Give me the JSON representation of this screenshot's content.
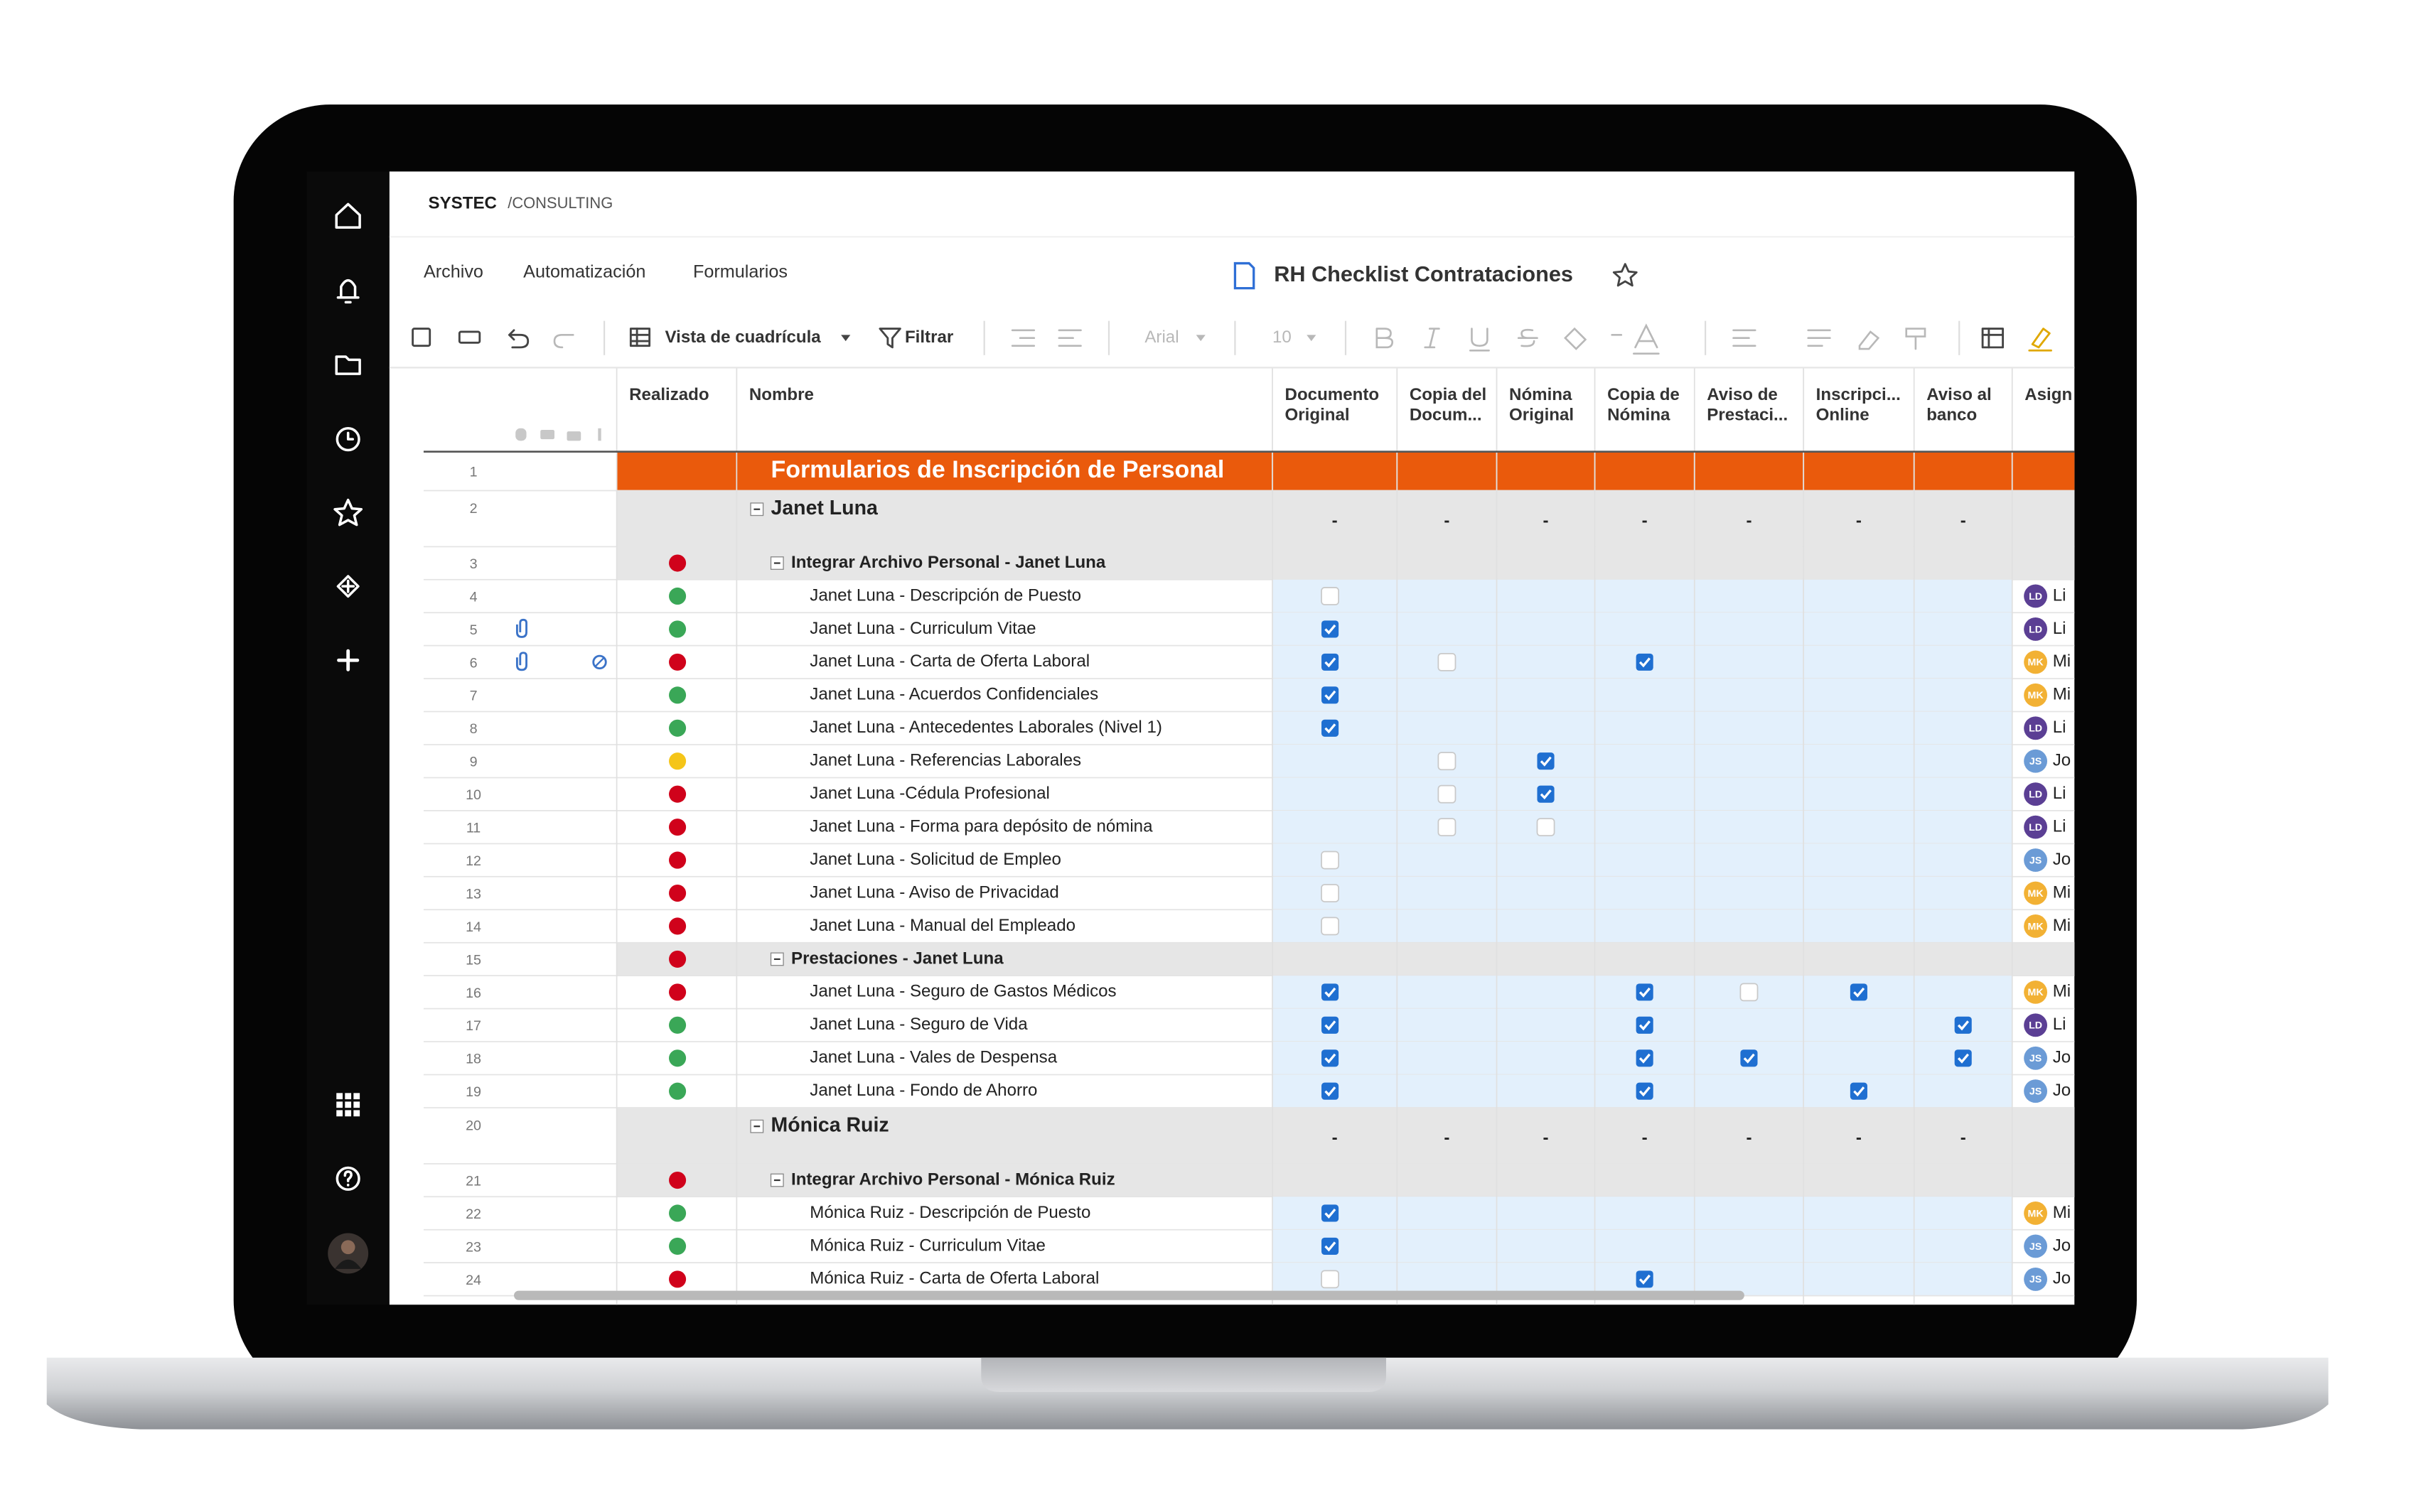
{
  "logo": {
    "brand": "SYSTEC",
    "suffix": "/CONSULTING"
  },
  "menu": [
    "Archivo",
    "Automatización",
    "Formularios"
  ],
  "sheet_title": "RH Checklist Contrataciones",
  "toolbar": {
    "view": "Vista de cuadrícula",
    "filter": "Filtrar",
    "font": "Arial",
    "size": 10
  },
  "columns": [
    {
      "lines": [
        "Realizado"
      ]
    },
    {
      "lines": [
        "Nombre"
      ]
    },
    {
      "lines": [
        "Documento",
        "Original"
      ]
    },
    {
      "lines": [
        "Copia del",
        "Docum..."
      ]
    },
    {
      "lines": [
        "Nómina",
        "Original"
      ]
    },
    {
      "lines": [
        "Copia de",
        "Nómina"
      ]
    },
    {
      "lines": [
        "Aviso de",
        "Prestaci..."
      ]
    },
    {
      "lines": [
        "Inscripci...",
        "Online"
      ]
    },
    {
      "lines": [
        "Aviso al",
        "banco"
      ]
    },
    {
      "lines": [
        "Asign"
      ]
    }
  ],
  "status_colors": {
    "red": "#d0021b",
    "green": "#3aa757",
    "yellow": "#f5c518"
  },
  "assignee_colors": {
    "LD": "#5b3f94",
    "MK": "#f2b134",
    "JS": "#6b9bd6"
  },
  "rows": [
    {
      "n": 1,
      "name": "Formularios de Inscripción de Personal"
    },
    {
      "n": 2,
      "level": 0,
      "name": "Janet Luna",
      "cells": [
        "-",
        "-",
        "-",
        "-",
        "-",
        "-",
        "-"
      ]
    },
    {
      "n": 3,
      "level": 1,
      "status": "red",
      "name": "Integrar Archivo Personal - Janet Luna"
    },
    {
      "n": 4,
      "level": 2,
      "status": "green",
      "name": "Janet Luna - Descripción de Puesto",
      "checks": [
        false,
        null,
        null,
        null,
        null,
        null,
        null
      ],
      "assignee": {
        "initials": "LD",
        "name": "Li"
      }
    },
    {
      "n": 5,
      "level": 2,
      "status": "green",
      "name": "Janet Luna - Curriculum Vitae",
      "attach": true,
      "checks": [
        true,
        null,
        null,
        null,
        null,
        null,
        null
      ],
      "assignee": {
        "initials": "LD",
        "name": "Li"
      }
    },
    {
      "n": 6,
      "level": 2,
      "status": "red",
      "name": "Janet Luna - Carta de Oferta Laboral",
      "attach": true,
      "linked": true,
      "checks": [
        true,
        false,
        null,
        true,
        null,
        null,
        null
      ],
      "assignee": {
        "initials": "MK",
        "name": "Mi"
      }
    },
    {
      "n": 7,
      "level": 2,
      "status": "green",
      "name": "Janet Luna - Acuerdos Confidenciales",
      "checks": [
        true,
        null,
        null,
        null,
        null,
        null,
        null
      ],
      "assignee": {
        "initials": "MK",
        "name": "Mi"
      }
    },
    {
      "n": 8,
      "level": 2,
      "status": "green",
      "name": "Janet Luna - Antecedentes Laborales (Nivel 1)",
      "checks": [
        true,
        null,
        null,
        null,
        null,
        null,
        null
      ],
      "assignee": {
        "initials": "LD",
        "name": "Li"
      }
    },
    {
      "n": 9,
      "level": 2,
      "status": "yellow",
      "name": "Janet Luna - Referencias Laborales",
      "checks": [
        null,
        false,
        true,
        null,
        null,
        null,
        null
      ],
      "assignee": {
        "initials": "JS",
        "name": "Jo"
      }
    },
    {
      "n": 10,
      "level": 2,
      "status": "red",
      "name": "Janet Luna -Cédula Profesional",
      "checks": [
        null,
        false,
        true,
        null,
        null,
        null,
        null
      ],
      "assignee": {
        "initials": "LD",
        "name": "Li"
      }
    },
    {
      "n": 11,
      "level": 2,
      "status": "red",
      "name": "Janet Luna - Forma para depósito de nómina",
      "checks": [
        null,
        false,
        false,
        null,
        null,
        null,
        null
      ],
      "assignee": {
        "initials": "LD",
        "name": "Li"
      }
    },
    {
      "n": 12,
      "level": 2,
      "status": "red",
      "name": "Janet Luna - Solicitud de Empleo",
      "checks": [
        false,
        null,
        null,
        null,
        null,
        null,
        null
      ],
      "assignee": {
        "initials": "JS",
        "name": "Jo"
      }
    },
    {
      "n": 13,
      "level": 2,
      "status": "red",
      "name": "Janet Luna - Aviso de Privacidad",
      "checks": [
        false,
        null,
        null,
        null,
        null,
        null,
        null
      ],
      "assignee": {
        "initials": "MK",
        "name": "Mi"
      }
    },
    {
      "n": 14,
      "level": 2,
      "status": "red",
      "name": "Janet Luna - Manual del Empleado",
      "checks": [
        false,
        null,
        null,
        null,
        null,
        null,
        null
      ],
      "assignee": {
        "initials": "MK",
        "name": "Mi"
      }
    },
    {
      "n": 15,
      "level": 1,
      "status": "red",
      "name": "Prestaciones - Janet Luna"
    },
    {
      "n": 16,
      "level": 2,
      "status": "red",
      "name": "Janet Luna - Seguro de Gastos Médicos",
      "checks": [
        true,
        null,
        null,
        true,
        false,
        true,
        null
      ],
      "assignee": {
        "initials": "MK",
        "name": "Mi"
      }
    },
    {
      "n": 17,
      "level": 2,
      "status": "green",
      "name": "Janet Luna - Seguro de Vida",
      "checks": [
        true,
        null,
        null,
        true,
        null,
        null,
        true
      ],
      "assignee": {
        "initials": "LD",
        "name": "Li"
      }
    },
    {
      "n": 18,
      "level": 2,
      "status": "green",
      "name": "Janet Luna - Vales de Despensa",
      "checks": [
        true,
        null,
        null,
        true,
        true,
        null,
        true
      ],
      "assignee": {
        "initials": "JS",
        "name": "Jo"
      }
    },
    {
      "n": 19,
      "level": 2,
      "status": "green",
      "name": "Janet Luna - Fondo de Ahorro",
      "checks": [
        true,
        null,
        null,
        true,
        null,
        true,
        null
      ],
      "assignee": {
        "initials": "JS",
        "name": "Jo"
      }
    },
    {
      "n": 20,
      "level": 0,
      "name": "Mónica Ruiz",
      "cells": [
        "-",
        "-",
        "-",
        "-",
        "-",
        "-",
        "-"
      ]
    },
    {
      "n": 21,
      "level": 1,
      "status": "red",
      "name": "Integrar Archivo Personal - Mónica Ruiz"
    },
    {
      "n": 22,
      "level": 2,
      "status": "green",
      "name": "Mónica Ruiz - Descripción de Puesto",
      "checks": [
        true,
        null,
        null,
        null,
        null,
        null,
        null
      ],
      "assignee": {
        "initials": "MK",
        "name": "Mi"
      }
    },
    {
      "n": 23,
      "level": 2,
      "status": "green",
      "name": "Mónica Ruiz - Curriculum Vitae",
      "checks": [
        true,
        null,
        null,
        null,
        null,
        null,
        null
      ],
      "assignee": {
        "initials": "JS",
        "name": "Jo"
      }
    },
    {
      "n": 24,
      "level": 2,
      "status": "red",
      "name": "Mónica Ruiz - Carta de Oferta Laboral",
      "checks": [
        false,
        null,
        null,
        true,
        null,
        null,
        null
      ],
      "assignee": {
        "initials": "JS",
        "name": "Jo"
      }
    }
  ]
}
